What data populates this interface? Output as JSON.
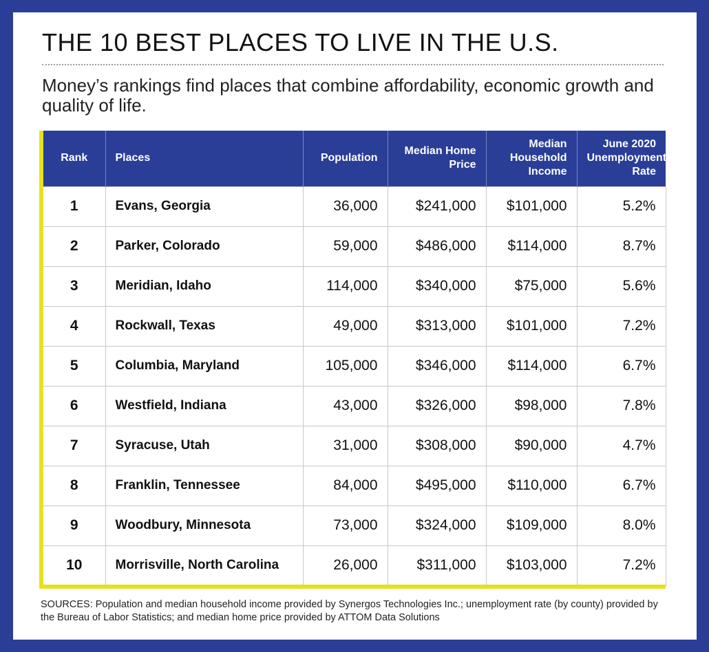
{
  "title": "THE 10 BEST PLACES TO LIVE IN THE U.S.",
  "subtitle": "Money’s rankings find places that combine affordability, economic growth and quality of life.",
  "colors": {
    "frame": "#2a3e98",
    "header_bg": "#2a3e98",
    "accent_yellow": "#e7e21b"
  },
  "chart_data": {
    "type": "table",
    "columns": [
      "Rank",
      "Places",
      "Population",
      "Median Home Price",
      "Median Household Income",
      "June 2020 Unemployment Rate"
    ],
    "rows": [
      [
        "1",
        "Evans, Georgia",
        "36,000",
        "$241,000",
        "$101,000",
        "5.2%"
      ],
      [
        "2",
        "Parker, Colorado",
        "59,000",
        "$486,000",
        "$114,000",
        "8.7%"
      ],
      [
        "3",
        "Meridian, Idaho",
        "114,000",
        "$340,000",
        "$75,000",
        "5.6%"
      ],
      [
        "4",
        "Rockwall, Texas",
        "49,000",
        "$313,000",
        "$101,000",
        "7.2%"
      ],
      [
        "5",
        "Columbia, Maryland",
        "105,000",
        "$346,000",
        "$114,000",
        "6.7%"
      ],
      [
        "6",
        "Westfield, Indiana",
        "43,000",
        "$326,000",
        "$98,000",
        "7.8%"
      ],
      [
        "7",
        "Syracuse, Utah",
        "31,000",
        "$308,000",
        "$90,000",
        "4.7%"
      ],
      [
        "8",
        "Franklin, Tennessee",
        "84,000",
        "$495,000",
        "$110,000",
        "6.7%"
      ],
      [
        "9",
        "Woodbury, Minnesota",
        "73,000",
        "$324,000",
        "$109,000",
        "8.0%"
      ],
      [
        "10",
        "Morrisville, North Carolina",
        "26,000",
        "$311,000",
        "$103,000",
        "7.2%"
      ]
    ]
  },
  "sources": "SOURCES: Population and median household income provided by Synergos Technologies Inc.; unemployment rate (by county) provided by the Bureau of Labor Statistics; and median home price provided by ATTOM Data Solutions"
}
